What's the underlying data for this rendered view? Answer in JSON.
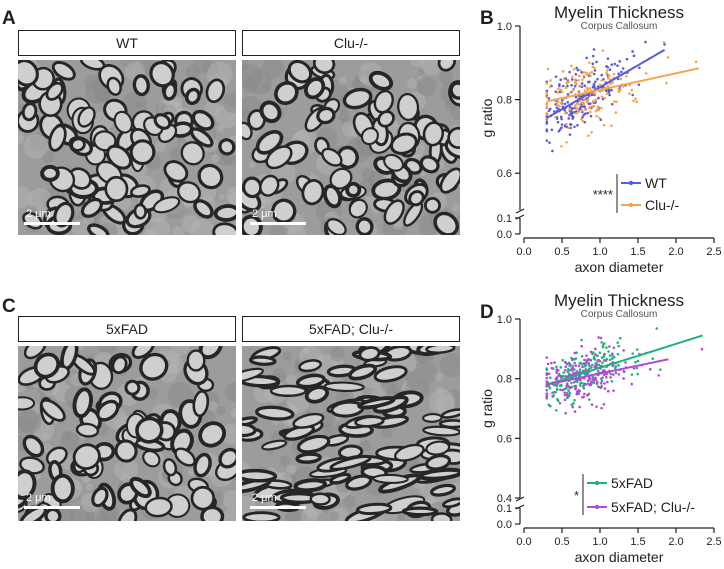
{
  "panels": {
    "top": {
      "letter_images": "A",
      "letter_chart": "B",
      "label_left": "WT",
      "label_right": "Clu-/-",
      "scale_label": "2 μm"
    },
    "bottom": {
      "letter_images": "C",
      "letter_chart": "D",
      "label_left": "5xFAD",
      "label_right": "5xFAD; Clu-/-",
      "scale_label": "2 μm"
    }
  },
  "chart_data": [
    {
      "type": "scatter",
      "title": "Myelin Thickness",
      "subtitle": "Corpus Callosum",
      "xlabel": "axon diameter",
      "ylabel": "g ratio",
      "xlim": [
        0.0,
        2.5
      ],
      "x_ticks": [
        "0.0",
        "0.5",
        "1.0",
        "1.5",
        "2.0",
        "2.5"
      ],
      "y_ticks_upper": [
        "0.6",
        "0.8",
        "1.0"
      ],
      "y_ticks_lower": [
        "0.0",
        "0.1"
      ],
      "significance": "****",
      "series": [
        {
          "name": "WT",
          "color": "#5b5bd6",
          "fit": {
            "x": [
              0.3,
              1.85
            ],
            "y": [
              0.75,
              0.935
            ]
          },
          "cloud": {
            "x_center": 0.75,
            "y_center": 0.8,
            "n": 220
          }
        },
        {
          "name": "Clu-/-",
          "color": "#f7a34b",
          "fit": {
            "x": [
              0.3,
              2.3
            ],
            "y": [
              0.795,
              0.885
            ]
          },
          "cloud": {
            "x_center": 0.8,
            "y_center": 0.83,
            "n": 160
          }
        }
      ]
    },
    {
      "type": "scatter",
      "title": "Myelin Thickness",
      "subtitle": "Corpus Callosum",
      "xlabel": "axon diameter",
      "ylabel": "g ratio",
      "xlim": [
        0.0,
        2.5
      ],
      "x_ticks": [
        "0.0",
        "0.5",
        "1.0",
        "1.5",
        "2.0",
        "2.5"
      ],
      "y_ticks_upper": [
        "0.4",
        "0.6",
        "0.8",
        "1.0"
      ],
      "y_ticks_lower": [
        "0.0",
        "0.1"
      ],
      "significance": "*",
      "series": [
        {
          "name": "5xFAD",
          "color": "#1fb37b",
          "fit": {
            "x": [
              0.3,
              2.35
            ],
            "y": [
              0.78,
              0.945
            ]
          },
          "cloud": {
            "x_center": 0.75,
            "y_center": 0.8,
            "n": 200
          }
        },
        {
          "name": "5xFAD; Clu-/-",
          "color": "#b04bd6",
          "fit": {
            "x": [
              0.3,
              1.9
            ],
            "y": [
              0.78,
              0.865
            ]
          },
          "cloud": {
            "x_center": 0.75,
            "y_center": 0.81,
            "n": 200
          }
        }
      ]
    }
  ]
}
